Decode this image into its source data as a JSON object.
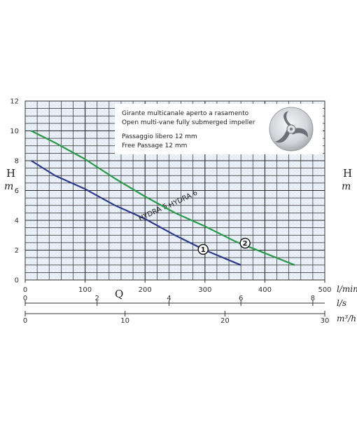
{
  "chart_data": {
    "type": "line",
    "title": "",
    "y_axis": {
      "label_left": "H",
      "unit_left": "m",
      "label_right": "H",
      "unit_right": "m",
      "ylim": [
        0,
        12
      ],
      "ticks": [
        "0",
        "2",
        "4",
        "6",
        "8",
        "10",
        "12"
      ]
    },
    "x_axes": [
      {
        "unit": "l/min",
        "xlim": [
          0,
          500
        ],
        "ticks": [
          "0",
          "100",
          "200",
          "300",
          "400",
          "500"
        ]
      },
      {
        "unit": "l/s",
        "xlim": [
          0,
          8.333
        ],
        "ticks": [
          "0",
          "2",
          "4",
          "6",
          "8"
        ]
      },
      {
        "unit": "m³/h",
        "xlim": [
          0,
          30
        ],
        "ticks": [
          "0",
          "10",
          "20",
          "30"
        ]
      }
    ],
    "x_title": "Q",
    "grid": true,
    "series": [
      {
        "name": "HYDRA 5",
        "badge": "1",
        "color": "#2e3a8c",
        "points": [
          [
            10,
            8
          ],
          [
            50,
            7
          ],
          [
            100,
            6.1
          ],
          [
            150,
            5
          ],
          [
            200,
            4.1
          ],
          [
            250,
            3
          ],
          [
            300,
            2
          ],
          [
            360,
            1
          ]
        ],
        "badge_at": [
          297,
          2.05
        ],
        "label_at": [
          215,
          4.4
        ],
        "label_angle": -26
      },
      {
        "name": "HYDRA 6",
        "badge": "2",
        "color": "#2a9a4a",
        "points": [
          [
            10,
            10
          ],
          [
            50,
            9.2
          ],
          [
            100,
            8.1
          ],
          [
            150,
            6.8
          ],
          [
            200,
            5.6
          ],
          [
            250,
            4.5
          ],
          [
            300,
            3.6
          ],
          [
            350,
            2.6
          ],
          [
            400,
            1.8
          ],
          [
            450,
            1
          ]
        ],
        "badge_at": [
          367,
          2.47
        ],
        "label_at": [
          265,
          5.3
        ],
        "label_angle": -26
      }
    ],
    "legend": {
      "lines": [
        "Girante multicanale aperto a rasamento",
        "Open multi-vane fully submerged impeller",
        "Passaggio libero 12 mm",
        "Free Passage 12 mm"
      ],
      "icon": "impeller-icon"
    }
  }
}
